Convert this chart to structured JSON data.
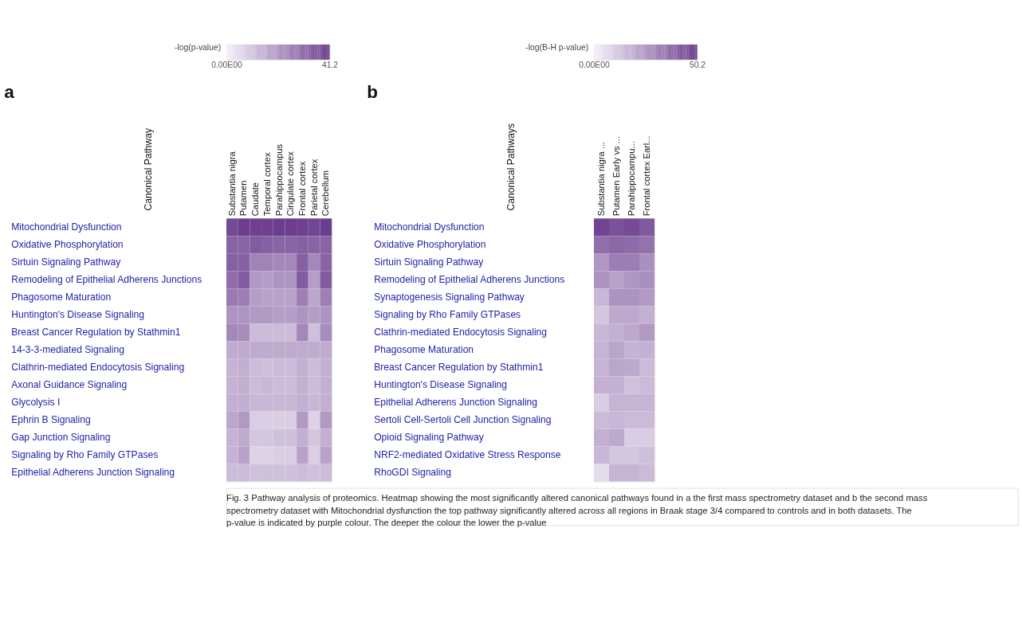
{
  "chart_data": [
    {
      "type": "heatmap",
      "title": "a",
      "clabel": "-log(p-value)",
      "ylabel": "Canonical Pathway",
      "clim": [
        0,
        41.2
      ],
      "cticks": [
        {
          "value": 0,
          "label": "0.00E00"
        },
        41.2
      ],
      "colors": [
        "#f4f1f8",
        "#6a3c8d"
      ],
      "categories": [
        "Substantia nigra",
        "Putamen",
        "Caudate",
        "Temporal cortex",
        "Parahippocampus",
        "Cingulate cortex",
        "Frontal cortex",
        "Parietal cortex",
        "Cerebellum"
      ],
      "y_categories": [
        "Mitochondrial Dysfunction",
        "Oxidative Phosphorylation",
        "Sirtuin Signaling Pathway",
        "Remodeling of Epithelial Adherens Junctions",
        "Phagosome Maturation",
        "Huntington's Disease Signaling",
        "Breast Cancer Regulation by Stathmin1",
        "14-3-3-mediated Signaling",
        "Clathrin-mediated Endocytosis Signaling",
        "Axonal Guidance Signaling",
        "Glycolysis I",
        "Ephrin B Signaling",
        "Gap Junction Signaling",
        "Signaling by Rho Family GTPases",
        "Epithelial Adherens Junction Signaling"
      ],
      "cells": [
        [
          38,
          41,
          40,
          40,
          41,
          41,
          40,
          39,
          41
        ],
        [
          32,
          32,
          34,
          33,
          32,
          32,
          33,
          32,
          32
        ],
        [
          33,
          33,
          25,
          25,
          24,
          24,
          33,
          24,
          32
        ],
        [
          30,
          34,
          20,
          19,
          21,
          21,
          34,
          19,
          34
        ],
        [
          27,
          26,
          19,
          18,
          18,
          18,
          26,
          17,
          26
        ],
        [
          21,
          21,
          20,
          20,
          19,
          19,
          21,
          19,
          21
        ],
        [
          24,
          23,
          12,
          12,
          12,
          12,
          24,
          11,
          23
        ],
        [
          16,
          16,
          16,
          16,
          16,
          16,
          16,
          16,
          16
        ],
        [
          14,
          15,
          12,
          11,
          12,
          12,
          15,
          12,
          15
        ],
        [
          14,
          15,
          12,
          13,
          12,
          12,
          15,
          12,
          15
        ],
        [
          15,
          15,
          13,
          13,
          13,
          13,
          15,
          13,
          15
        ],
        [
          17,
          20,
          8,
          8,
          8,
          8,
          20,
          7,
          20
        ],
        [
          14,
          16,
          10,
          10,
          11,
          11,
          15,
          10,
          15
        ],
        [
          14,
          18,
          7,
          7,
          8,
          8,
          18,
          8,
          18
        ],
        [
          12,
          12,
          11,
          11,
          11,
          11,
          12,
          11,
          12
        ]
      ],
      "annotations": [
        "Fig. 3  Pathway analysis of proteomics. Heatmap showing the most significantly altered canonical pathways found in a the first mass spectrometry dataset and b the second mass spectrometry dataset with Mitochondrial dysfunction the top pathway significantly altered across all regions in Braak stage 3/4 compared to controls and in both datasets. The p-value is indicated by purple colour. The deeper the colour the lower the p-value"
      ]
    },
    {
      "type": "heatmap",
      "title": "b",
      "clabel": "-log(B-H p-value)",
      "ylabel": "Canonical Pathways",
      "clim": [
        0,
        50.2
      ],
      "cticks": [
        {
          "value": 0,
          "label": "0.00E00"
        },
        50.2
      ],
      "colors": [
        "#f4f1f8",
        "#6a3c8d"
      ],
      "categories": [
        "Substantia nigra ...",
        "Putamen Early vs ...",
        "Parahippocampu...",
        "Frontal cortex Earl..."
      ],
      "y_categories": [
        "Mitochondrial Dysfunction",
        "Oxidative Phosphorylation",
        "Sirtuin Signaling Pathway",
        "Remodeling of Epithelial Adherens Junctions",
        "Synaptogenesis Signaling Pathway",
        "Signaling by Rho Family GTPases",
        "Clathrin-mediated Endocytosis Signaling",
        "Phagosome Maturation",
        "Breast Cancer Regulation by Stathmin1",
        "Huntington's Disease Signaling",
        "Epithelial Adherens Junction Signaling",
        "Sertoli Cell-Sertoli Cell Junction Signaling",
        "Opioid Signaling Pathway",
        "NRF2-mediated Oxidative Stress Response",
        "RhoGDI Signaling"
      ],
      "cells": [
        [
          48,
          44,
          46,
          42
        ],
        [
          36,
          38,
          37,
          35
        ],
        [
          25,
          32,
          32,
          27
        ],
        [
          26,
          22,
          25,
          27
        ],
        [
          16,
          26,
          26,
          24
        ],
        [
          12,
          20,
          20,
          18
        ],
        [
          16,
          18,
          20,
          24
        ],
        [
          17,
          21,
          17,
          18
        ],
        [
          17,
          21,
          20,
          15
        ],
        [
          18,
          18,
          13,
          15
        ],
        [
          10,
          17,
          17,
          17
        ],
        [
          15,
          16,
          15,
          15
        ],
        [
          18,
          20,
          10,
          10
        ],
        [
          16,
          12,
          12,
          14
        ],
        [
          6,
          17,
          17,
          15
        ]
      ]
    }
  ]
}
